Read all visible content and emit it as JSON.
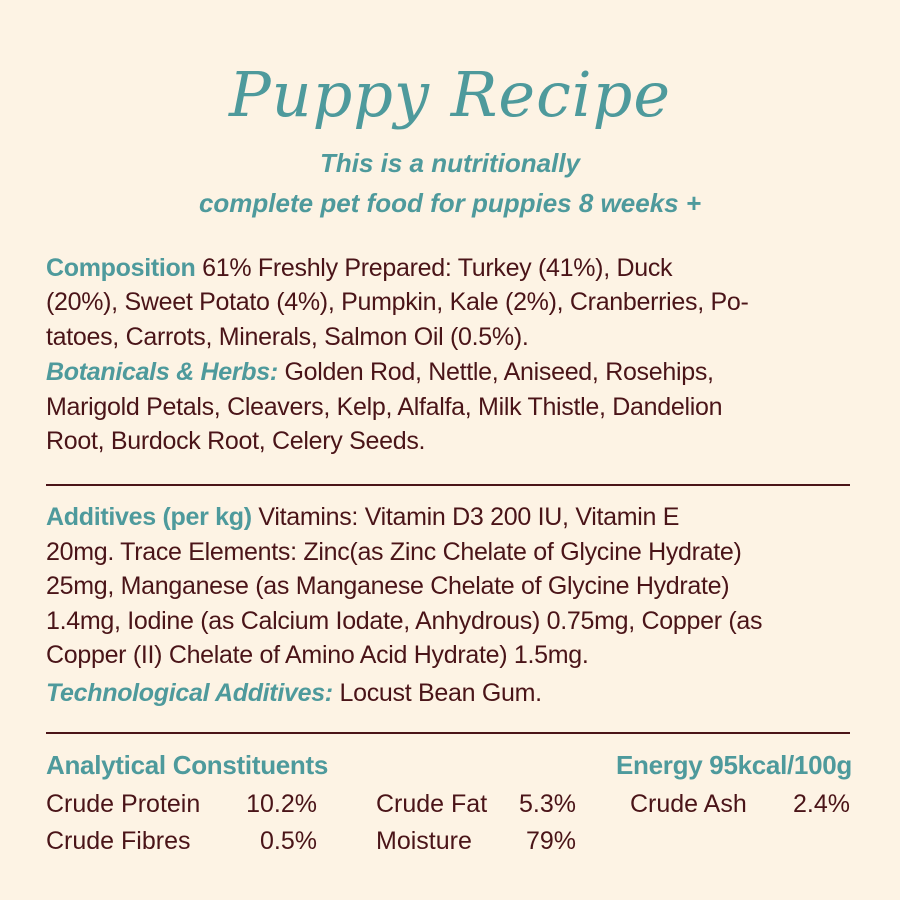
{
  "title": "Puppy Recipe",
  "subtitle": [
    "This is a nutritionally",
    "complete pet food for puppies 8 weeks +"
  ],
  "composition": {
    "heading": "Composition",
    "lines": [
      "61% Freshly Prepared: Turkey (41%), Duck",
      "(20%), Sweet Potato (4%), Pumpkin, Kale (2%), Cranberries, Po-",
      "tatoes, Carrots, Minerals, Salmon Oil (0.5%)."
    ],
    "botanicals_heading": "Botanicals & Herbs:",
    "botanicals_lines": [
      "Golden Rod, Nettle, Aniseed, Rosehips,",
      "Marigold Petals, Cleavers, Kelp, Alfalfa, Milk Thistle, Dandelion",
      "Root, Burdock Root, Celery Seeds."
    ]
  },
  "additives": {
    "heading": "Additives (per kg)",
    "lines": [
      "Vitamins: Vitamin D3 200 IU, Vitamin E",
      "20mg. Trace Elements: Zinc(as Zinc Chelate of Glycine Hydrate)",
      "25mg, Manganese (as  Manganese Chelate of Glycine Hydrate)",
      "1.4mg, Iodine (as Calcium Iodate, Anhydrous) 0.75mg, Copper (as",
      "Copper (II) Chelate of Amino Acid Hydrate) 1.5mg."
    ],
    "tech_heading": "Technological Additives:",
    "tech_text": "Locust Bean Gum."
  },
  "analytical": {
    "heading": "Analytical Constituents",
    "energy": "Energy 95kcal/100g",
    "items": [
      {
        "label": "Crude Protein",
        "value": "10.2%"
      },
      {
        "label": "Crude Fat",
        "value": "5.3%"
      },
      {
        "label": "Crude Ash",
        "value": "2.4%"
      },
      {
        "label": "Crude Fibres",
        "value": "0.5%"
      },
      {
        "label": "Moisture",
        "value": "79%"
      }
    ]
  },
  "colors": {
    "background": "#fdf3e4",
    "accent": "#4e9a9c",
    "text": "#4a1418"
  }
}
